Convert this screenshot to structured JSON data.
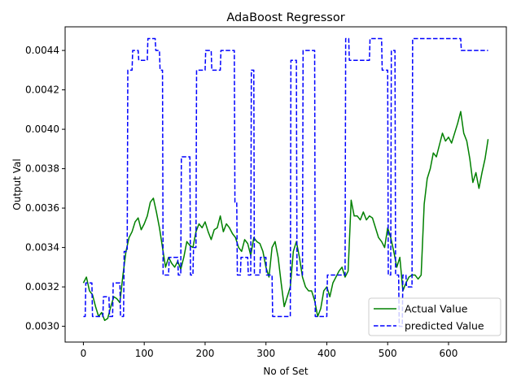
{
  "chart_data": {
    "type": "line",
    "title": "AdaBoost Regressor",
    "xlabel": "No of Set",
    "ylabel": "Output Val",
    "xlim": [
      -30,
      695
    ],
    "ylim": [
      0.00292,
      0.00452
    ],
    "x_ticks": [
      0,
      100,
      200,
      300,
      400,
      500,
      600
    ],
    "x_tick_labels": [
      "0",
      "100",
      "200",
      "300",
      "400",
      "500",
      "600"
    ],
    "y_ticks": [
      0.003,
      0.0032,
      0.0034,
      0.0036,
      0.0038,
      0.004,
      0.0042,
      0.0044
    ],
    "y_tick_labels": [
      "0.0030",
      "0.0032",
      "0.0034",
      "0.0036",
      "0.0038",
      "0.0040",
      "0.0042",
      "0.0044"
    ],
    "grid": false,
    "legend_position": "lower-right",
    "series": [
      {
        "name": "Actual Value",
        "color": "#008000",
        "style": "solid",
        "x": [
          0,
          5,
          10,
          15,
          20,
          25,
          30,
          35,
          40,
          45,
          50,
          55,
          60,
          65,
          70,
          75,
          80,
          85,
          90,
          95,
          100,
          105,
          110,
          115,
          120,
          125,
          130,
          135,
          140,
          145,
          150,
          155,
          160,
          165,
          170,
          175,
          180,
          185,
          190,
          195,
          200,
          205,
          210,
          215,
          220,
          225,
          230,
          235,
          240,
          245,
          250,
          255,
          260,
          265,
          270,
          275,
          280,
          285,
          290,
          295,
          300,
          305,
          310,
          315,
          320,
          325,
          330,
          335,
          340,
          345,
          350,
          355,
          360,
          365,
          370,
          375,
          380,
          385,
          390,
          395,
          400,
          405,
          410,
          415,
          420,
          425,
          430,
          435,
          440,
          445,
          450,
          455,
          460,
          465,
          470,
          475,
          480,
          485,
          490,
          495,
          500,
          505,
          510,
          515,
          520,
          525,
          530,
          535,
          540,
          545,
          550,
          555,
          560,
          565,
          570,
          575,
          580,
          585,
          590,
          595,
          600,
          605,
          610,
          615,
          620,
          625,
          630,
          635,
          640,
          645,
          650,
          655,
          660,
          665
        ],
        "values": [
          0.00322,
          0.00325,
          0.00318,
          0.00316,
          0.0031,
          0.00305,
          0.00307,
          0.00303,
          0.00304,
          0.0031,
          0.00315,
          0.00314,
          0.00312,
          0.00326,
          0.00338,
          0.00345,
          0.00348,
          0.00353,
          0.00355,
          0.00349,
          0.00352,
          0.00356,
          0.00363,
          0.00365,
          0.00358,
          0.0035,
          0.0034,
          0.0033,
          0.00335,
          0.00332,
          0.0033,
          0.00333,
          0.00329,
          0.00335,
          0.00343,
          0.00341,
          0.0034,
          0.00348,
          0.00352,
          0.0035,
          0.00353,
          0.00348,
          0.00344,
          0.00349,
          0.0035,
          0.00356,
          0.00348,
          0.00352,
          0.0035,
          0.00347,
          0.00345,
          0.0034,
          0.00338,
          0.00344,
          0.00342,
          0.00336,
          0.00345,
          0.00343,
          0.00342,
          0.00338,
          0.0033,
          0.00325,
          0.0034,
          0.00343,
          0.00335,
          0.00322,
          0.0031,
          0.00315,
          0.0032,
          0.00338,
          0.00343,
          0.00335,
          0.00325,
          0.0032,
          0.00318,
          0.00318,
          0.00313,
          0.00305,
          0.00309,
          0.00318,
          0.0032,
          0.00315,
          0.00322,
          0.00325,
          0.00328,
          0.0033,
          0.00325,
          0.00328,
          0.00364,
          0.00356,
          0.00356,
          0.00354,
          0.00358,
          0.00354,
          0.00356,
          0.00355,
          0.0035,
          0.00345,
          0.00343,
          0.0034,
          0.0035,
          0.00345,
          0.00338,
          0.0033,
          0.00335,
          0.00318,
          0.00322,
          0.00325,
          0.00326,
          0.00326,
          0.00324,
          0.00326,
          0.00362,
          0.00375,
          0.0038,
          0.00388,
          0.00386,
          0.00392,
          0.00398,
          0.00394,
          0.00396,
          0.00393,
          0.00398,
          0.00403,
          0.00409,
          0.00398,
          0.00394,
          0.00385,
          0.00373,
          0.00378,
          0.0037,
          0.00378,
          0.00385,
          0.00395
        ]
      },
      {
        "name": "predicted Value",
        "color": "#0000ff",
        "style": "dashed",
        "x": [
          0,
          3,
          4,
          14,
          15,
          32,
          33,
          42,
          43,
          48,
          49,
          60,
          61,
          66,
          67,
          72,
          73,
          80,
          81,
          90,
          91,
          105,
          106,
          118,
          119,
          125,
          126,
          130,
          131,
          140,
          141,
          155,
          156,
          160,
          161,
          175,
          176,
          180,
          181,
          185,
          186,
          200,
          201,
          210,
          211,
          225,
          226,
          248,
          249,
          252,
          253,
          258,
          259,
          270,
          271,
          275,
          276,
          280,
          281,
          290,
          291,
          300,
          301,
          310,
          311,
          340,
          341,
          350,
          351,
          360,
          361,
          380,
          381,
          400,
          401,
          430,
          431,
          436,
          437,
          470,
          471,
          490,
          491,
          500,
          501,
          505,
          506,
          512,
          513,
          518,
          519,
          524,
          525,
          530,
          531,
          540,
          541,
          560,
          561,
          620,
          621,
          665
        ],
        "values": [
          0.00305,
          0.00305,
          0.00322,
          0.00322,
          0.00305,
          0.00305,
          0.00315,
          0.00315,
          0.00305,
          0.00305,
          0.00322,
          0.00322,
          0.00305,
          0.00305,
          0.00338,
          0.00338,
          0.0043,
          0.0043,
          0.0044,
          0.0044,
          0.00435,
          0.00435,
          0.00446,
          0.00446,
          0.0044,
          0.0044,
          0.0043,
          0.0043,
          0.00326,
          0.00326,
          0.00335,
          0.00335,
          0.00326,
          0.00326,
          0.00386,
          0.00386,
          0.00326,
          0.00326,
          0.0034,
          0.0034,
          0.0043,
          0.0043,
          0.0044,
          0.0044,
          0.0043,
          0.0043,
          0.0044,
          0.0044,
          0.00363,
          0.00363,
          0.00326,
          0.00326,
          0.00335,
          0.00335,
          0.00326,
          0.00326,
          0.0043,
          0.0043,
          0.00326,
          0.00326,
          0.00335,
          0.00335,
          0.00326,
          0.00326,
          0.00305,
          0.00305,
          0.00435,
          0.00435,
          0.00326,
          0.00326,
          0.0044,
          0.0044,
          0.00305,
          0.00305,
          0.00326,
          0.00326,
          0.00446,
          0.00446,
          0.00435,
          0.00435,
          0.00446,
          0.00446,
          0.0043,
          0.0043,
          0.00326,
          0.00326,
          0.0044,
          0.0044,
          0.00326,
          0.00326,
          0.003,
          0.003,
          0.00326,
          0.00326,
          0.0032,
          0.0032,
          0.00446,
          0.00446,
          0.00446,
          0.00446,
          0.0044,
          0.0044
        ]
      }
    ]
  }
}
